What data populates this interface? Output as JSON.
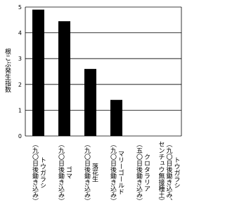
{
  "chart_data": {
    "type": "bar",
    "y_label": "根こぶ発生指数",
    "categories": [
      [
        "トウガラシ",
        "（九〇日後鋤き込み）"
      ],
      [
        "ゴマ",
        "（九〇日後鋤き込み）"
      ],
      [
        "落花生",
        "（九〇日後鋤き込み）"
      ],
      [
        "マリーゴールド",
        "（九〇日後鋤き込み）"
      ],
      [
        "クロタラリア",
        "（五〇日後鋤き込み）"
      ],
      [
        "トウガラシ",
        "（九〇日後鋤き込み、",
        "センチュウ無接種土）"
      ]
    ],
    "values": [
      4.9,
      4.45,
      2.6,
      1.4,
      0,
      0
    ],
    "color": "#000000",
    "ylim": [
      0,
      5
    ],
    "yticks": [
      0,
      1,
      2,
      3,
      4,
      5
    ],
    "grid": true
  }
}
